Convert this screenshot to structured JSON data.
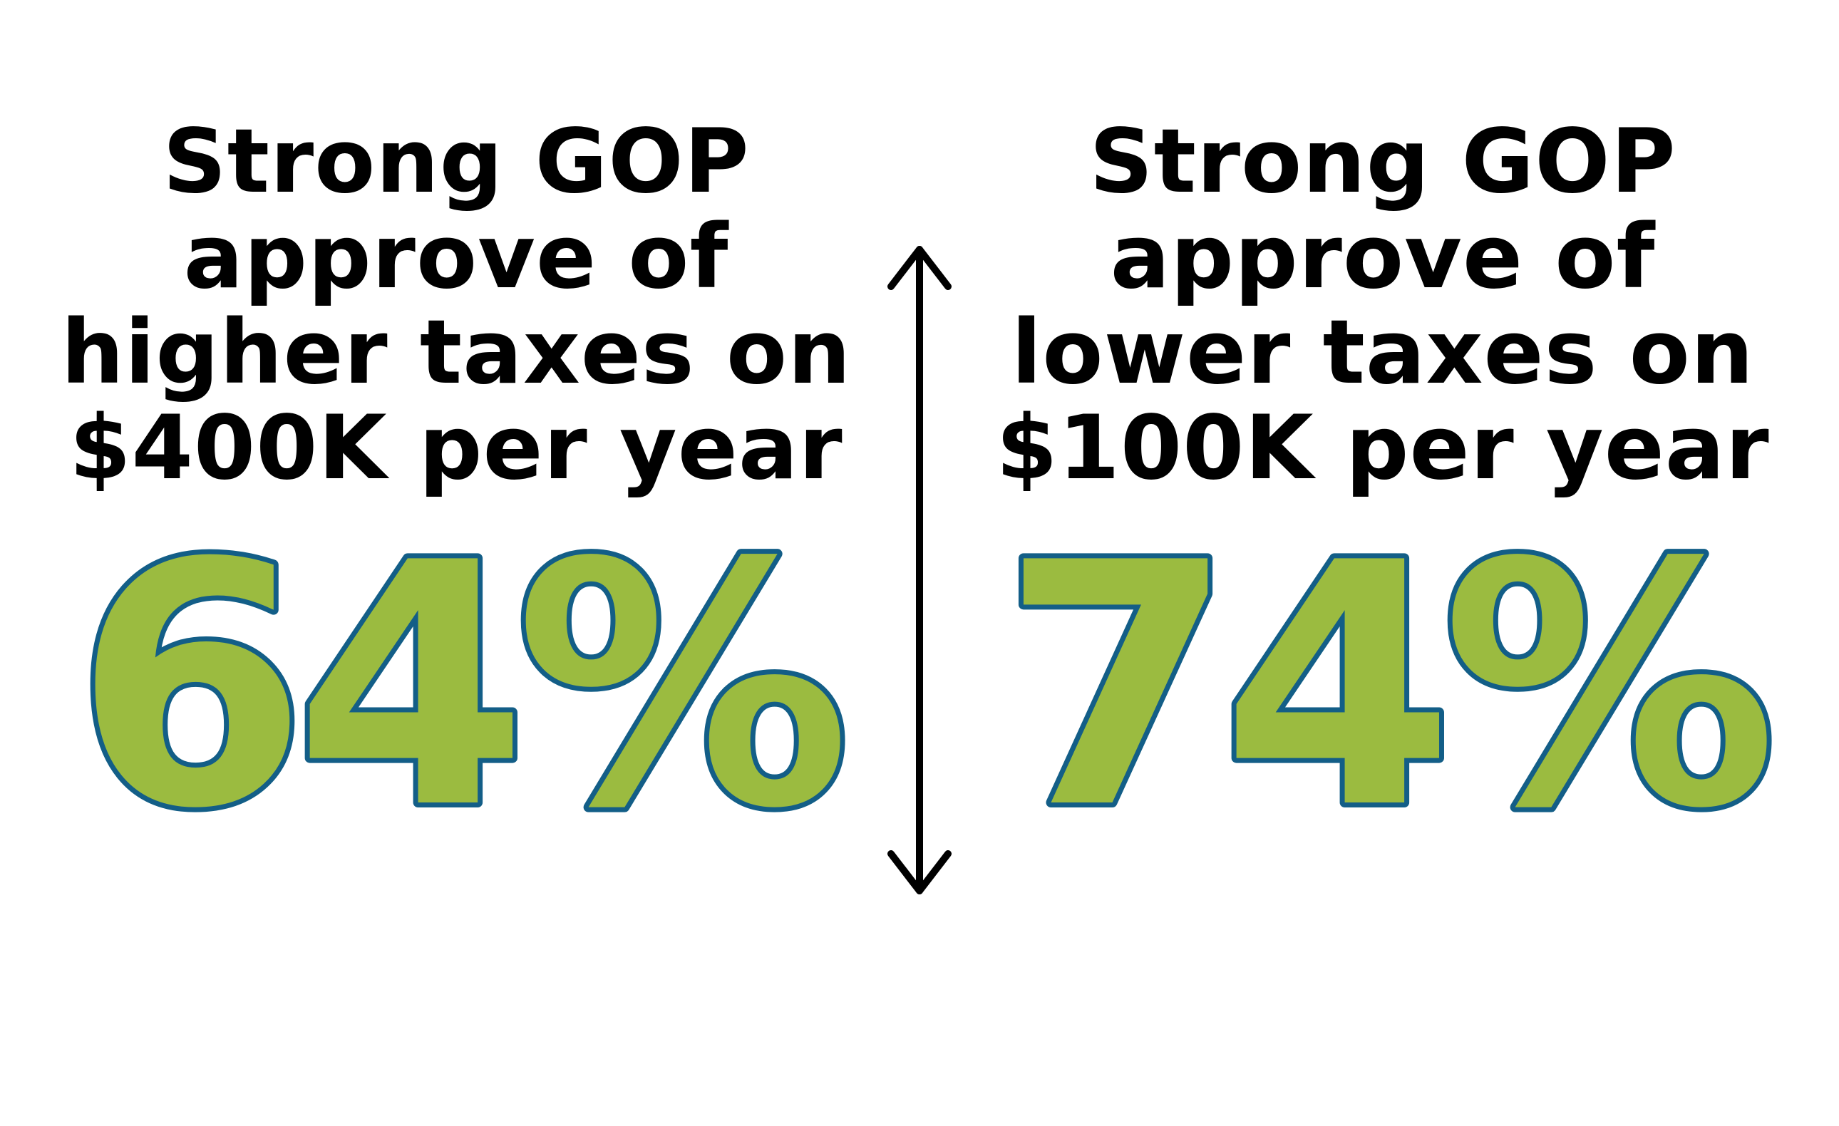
{
  "left": {
    "lines": [
      "Strong GOP",
      "approve of",
      "higher taxes on",
      "$400K per year"
    ],
    "percent": "64%"
  },
  "right": {
    "lines": [
      "Strong GOP",
      "approve of",
      "lower taxes on",
      "$100K per year"
    ],
    "percent": "74%"
  },
  "colors": {
    "text": "#000000",
    "figure_fill": "#9BBB40",
    "figure_stroke": "#135E87",
    "arrow": "#000000"
  },
  "icons": {
    "divider": "double-headed-vertical-arrow-icon"
  }
}
